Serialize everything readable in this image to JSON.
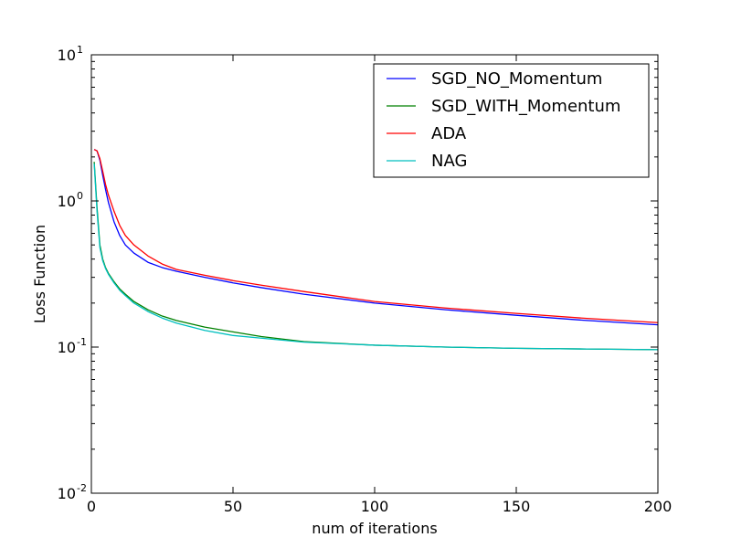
{
  "chart_data": {
    "type": "line",
    "title": "",
    "xlabel": "num of iterations",
    "ylabel": "Loss Function",
    "xlim": [
      0,
      200
    ],
    "ylim": [
      0.01,
      10
    ],
    "yscale": "log",
    "grid": false,
    "legend_position": "top-right",
    "x_ticks": [
      {
        "value": 0,
        "label": "0"
      },
      {
        "value": 50,
        "label": "50"
      },
      {
        "value": 100,
        "label": "100"
      },
      {
        "value": 150,
        "label": "150"
      },
      {
        "value": 200,
        "label": "200"
      }
    ],
    "y_ticks": [
      {
        "value": 10,
        "base": "10",
        "exp": "1"
      },
      {
        "value": 1,
        "base": "10",
        "exp": "0"
      },
      {
        "value": 0.1,
        "base": "10",
        "exp": "-1"
      },
      {
        "value": 0.01,
        "base": "10",
        "exp": "-2"
      }
    ],
    "series": [
      {
        "name": "SGD_NO_Momentum",
        "color": "#0000ff",
        "x": [
          1,
          2,
          3,
          4,
          5,
          6,
          8,
          10,
          12,
          15,
          20,
          25,
          30,
          40,
          50,
          60,
          75,
          100,
          125,
          150,
          175,
          200
        ],
        "y": [
          2.25,
          2.2,
          1.9,
          1.5,
          1.2,
          0.98,
          0.72,
          0.58,
          0.5,
          0.44,
          0.38,
          0.35,
          0.33,
          0.3,
          0.275,
          0.255,
          0.23,
          0.2,
          0.18,
          0.165,
          0.152,
          0.142
        ]
      },
      {
        "name": "SGD_WITH_Momentum",
        "color": "#008000",
        "x": [
          1,
          2,
          3,
          4,
          5,
          6,
          8,
          10,
          12,
          15,
          20,
          25,
          30,
          40,
          50,
          60,
          75,
          100,
          125,
          150,
          175,
          200
        ],
        "y": [
          1.85,
          0.9,
          0.5,
          0.4,
          0.35,
          0.32,
          0.28,
          0.25,
          0.23,
          0.205,
          0.18,
          0.163,
          0.152,
          0.137,
          0.127,
          0.118,
          0.109,
          0.103,
          0.1,
          0.098,
          0.097,
          0.096
        ]
      },
      {
        "name": "ADA",
        "color": "#ff0000",
        "x": [
          1,
          2,
          3,
          4,
          5,
          6,
          8,
          10,
          12,
          15,
          20,
          25,
          30,
          40,
          50,
          60,
          75,
          100,
          125,
          150,
          175,
          200
        ],
        "y": [
          2.25,
          2.2,
          1.95,
          1.6,
          1.3,
          1.1,
          0.85,
          0.68,
          0.58,
          0.5,
          0.42,
          0.37,
          0.34,
          0.31,
          0.285,
          0.265,
          0.24,
          0.205,
          0.185,
          0.17,
          0.157,
          0.147
        ]
      },
      {
        "name": "NAG",
        "color": "#00bfbf",
        "x": [
          1,
          2,
          3,
          4,
          5,
          6,
          8,
          10,
          12,
          15,
          20,
          25,
          30,
          40,
          50,
          60,
          75,
          100,
          125,
          150,
          175,
          200
        ],
        "y": [
          1.8,
          0.85,
          0.48,
          0.39,
          0.345,
          0.315,
          0.275,
          0.245,
          0.225,
          0.2,
          0.175,
          0.158,
          0.146,
          0.13,
          0.12,
          0.115,
          0.108,
          0.103,
          0.1,
          0.098,
          0.097,
          0.096
        ]
      }
    ]
  }
}
